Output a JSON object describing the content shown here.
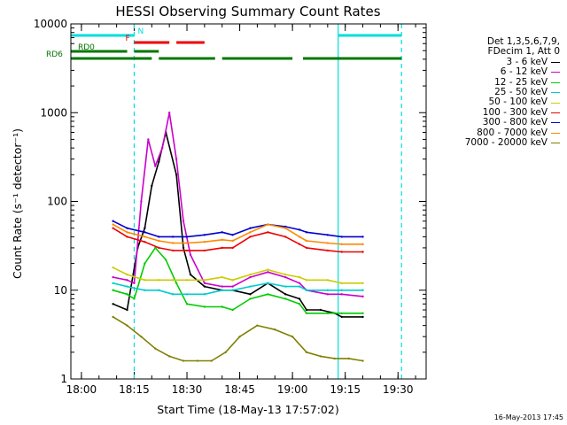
{
  "chart_data": {
    "type": "line",
    "title": "HESSI Observing Summary Count Rates",
    "xlabel": "Start Time (18-May-13 17:57:02)",
    "ylabel": "Count Rate (s⁻¹ detector⁻¹)",
    "yscale": "log",
    "ylim": [
      1,
      10000
    ],
    "xlim_minutes_after_1757": [
      0,
      101
    ],
    "x_ticks": [
      "18:00",
      "18:15",
      "18:30",
      "18:45",
      "19:00",
      "19:15",
      "19:30"
    ],
    "y_ticks": [
      "1",
      "10",
      "100",
      "1000",
      "10000"
    ],
    "grid": false,
    "legend_placement": "right-outside",
    "legend_header": [
      "Det 1,3,5,6,7,9,",
      "FDecim 1, Att 0"
    ],
    "series": [
      {
        "name": "3 - 6 keV",
        "color": "#000000",
        "x": [
          "18:09",
          "18:13",
          "18:16",
          "18:18",
          "18:20",
          "18:22",
          "18:24",
          "18:27",
          "18:29",
          "18:31",
          "18:35",
          "18:40",
          "18:43",
          "18:48",
          "18:53",
          "18:58",
          "19:02",
          "19:04",
          "19:08",
          "19:12",
          "19:14",
          "19:20"
        ],
        "values": [
          7,
          6,
          30,
          50,
          150,
          280,
          600,
          200,
          30,
          15,
          11,
          10,
          10,
          9,
          12,
          9,
          8,
          6,
          6,
          5.5,
          5,
          5
        ]
      },
      {
        "name": "6 - 12 keV",
        "color": "#cc00cc",
        "x": [
          "18:09",
          "18:13",
          "18:15",
          "18:17",
          "18:19",
          "18:21",
          "18:23",
          "18:25",
          "18:27",
          "18:29",
          "18:31",
          "18:35",
          "18:40",
          "18:43",
          "18:48",
          "18:53",
          "18:58",
          "19:02",
          "19:04",
          "19:10",
          "19:14",
          "19:20"
        ],
        "values": [
          14,
          13,
          12,
          100,
          500,
          250,
          400,
          1000,
          300,
          60,
          25,
          12,
          11,
          11,
          14,
          16,
          14,
          12,
          10,
          9,
          9,
          8.5
        ]
      },
      {
        "name": "12 - 25 keV",
        "color": "#00cc00",
        "x": [
          "18:09",
          "18:13",
          "18:15",
          "18:18",
          "18:21",
          "18:24",
          "18:27",
          "18:30",
          "18:35",
          "18:40",
          "18:43",
          "18:48",
          "18:53",
          "18:58",
          "19:02",
          "19:04",
          "19:10",
          "19:14",
          "19:20"
        ],
        "values": [
          10,
          9,
          8,
          20,
          30,
          22,
          12,
          7,
          6.5,
          6.5,
          6,
          8,
          9,
          8,
          7,
          5.5,
          5.5,
          5.5,
          5.5
        ]
      },
      {
        "name": "25 - 50 keV",
        "color": "#00cccc",
        "x": [
          "18:09",
          "18:13",
          "18:18",
          "18:22",
          "18:26",
          "18:30",
          "18:35",
          "18:40",
          "18:43",
          "18:48",
          "18:53",
          "18:58",
          "19:02",
          "19:04",
          "19:10",
          "19:14",
          "19:20"
        ],
        "values": [
          12,
          11,
          10,
          10,
          9,
          9,
          9,
          10,
          10,
          11,
          12,
          11,
          11,
          10,
          10,
          10,
          10
        ]
      },
      {
        "name": "50 - 100 keV",
        "color": "#cccc00",
        "x": [
          "18:09",
          "18:13",
          "18:18",
          "18:22",
          "18:26",
          "18:30",
          "18:35",
          "18:40",
          "18:43",
          "18:48",
          "18:53",
          "18:58",
          "19:02",
          "19:04",
          "19:10",
          "19:14",
          "19:20"
        ],
        "values": [
          18,
          15,
          13,
          13,
          13,
          13,
          13,
          14,
          13,
          15,
          17,
          15,
          14,
          13,
          13,
          12,
          12
        ]
      },
      {
        "name": "100 - 300 keV",
        "color": "#ee0000",
        "x": [
          "18:09",
          "18:13",
          "18:18",
          "18:22",
          "18:26",
          "18:30",
          "18:35",
          "18:40",
          "18:43",
          "18:48",
          "18:53",
          "18:58",
          "19:02",
          "19:04",
          "19:10",
          "19:14",
          "19:20"
        ],
        "values": [
          50,
          40,
          35,
          30,
          28,
          28,
          28,
          30,
          30,
          40,
          45,
          40,
          33,
          30,
          28,
          27,
          27
        ]
      },
      {
        "name": "300 - 800 keV",
        "color": "#0000cc",
        "x": [
          "18:09",
          "18:13",
          "18:18",
          "18:22",
          "18:26",
          "18:30",
          "18:35",
          "18:40",
          "18:43",
          "18:48",
          "18:53",
          "18:58",
          "19:02",
          "19:04",
          "19:10",
          "19:14",
          "19:20"
        ],
        "values": [
          60,
          50,
          45,
          40,
          40,
          40,
          42,
          45,
          42,
          50,
          55,
          52,
          48,
          45,
          42,
          40,
          40
        ]
      },
      {
        "name": "800 - 7000 keV",
        "color": "#ff8800",
        "x": [
          "18:09",
          "18:13",
          "18:18",
          "18:22",
          "18:26",
          "18:30",
          "18:35",
          "18:40",
          "18:43",
          "18:48",
          "18:53",
          "18:58",
          "19:02",
          "19:04",
          "19:10",
          "19:14",
          "19:20"
        ],
        "values": [
          55,
          45,
          40,
          36,
          34,
          34,
          35,
          37,
          36,
          45,
          55,
          50,
          40,
          36,
          34,
          33,
          33
        ]
      },
      {
        "name": "7000 - 20000 keV",
        "color": "#808000",
        "x": [
          "18:09",
          "18:13",
          "18:17",
          "18:21",
          "18:25",
          "18:29",
          "18:33",
          "18:37",
          "18:41",
          "18:45",
          "18:50",
          "18:55",
          "19:00",
          "19:04",
          "19:08",
          "19:12",
          "19:16",
          "19:20"
        ],
        "values": [
          5,
          4,
          3,
          2.2,
          1.8,
          1.6,
          1.6,
          1.6,
          2,
          3,
          4,
          3.6,
          3,
          2,
          1.8,
          1.7,
          1.7,
          1.6
        ]
      }
    ],
    "annotations": [
      {
        "label": "N",
        "color": "#00dddd",
        "segments": [
          [
            "17:57",
            "18:15"
          ],
          [
            "19:13",
            "19:31"
          ]
        ]
      },
      {
        "label": "F",
        "color": "#ee0000",
        "segments": [
          [
            "18:15",
            "18:25"
          ],
          [
            "18:27",
            "18:35"
          ]
        ]
      },
      {
        "label": "RD0",
        "color": "#007700",
        "segments": [
          [
            "17:57",
            "18:13"
          ],
          [
            "18:15",
            "18:22"
          ]
        ]
      },
      {
        "label": "RD6",
        "color": "#007700",
        "segments": [
          [
            "17:57",
            "18:20"
          ],
          [
            "18:22",
            "18:38"
          ],
          [
            "18:40",
            "19:00"
          ],
          [
            "19:03",
            "19:31"
          ]
        ]
      }
    ],
    "vertical_lines": [
      {
        "x": "18:15",
        "style": "dashed",
        "color": "#00dddd"
      },
      {
        "x": "19:13",
        "style": "solid",
        "color": "#00dddd"
      },
      {
        "x": "19:31",
        "style": "dashed",
        "color": "#00dddd"
      }
    ],
    "date_stamp": "16-May-2013 17:45"
  }
}
